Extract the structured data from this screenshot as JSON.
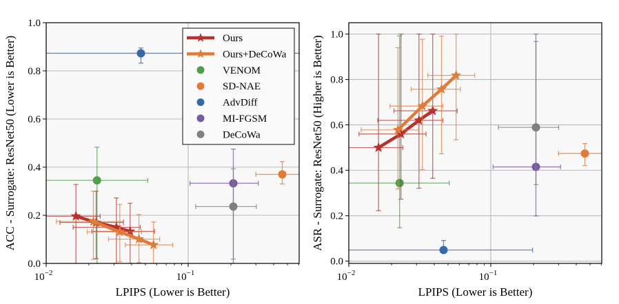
{
  "colors": {
    "ours": "#b5322f",
    "ours_decowa": "#e07b39",
    "venom": "#4f9e4a",
    "sdnae": "#e07b39",
    "advdiff": "#3569a8",
    "mifgsm": "#7a5ba3",
    "decowa": "#808080"
  },
  "legend": {
    "entries": [
      {
        "label": "Ours",
        "key": "ours",
        "marker": "star-line"
      },
      {
        "label": "Ours+DeCoWa",
        "key": "ours_decowa",
        "marker": "star-line"
      },
      {
        "label": "VENOM",
        "key": "venom",
        "marker": "circle"
      },
      {
        "label": "SD-NAE",
        "key": "sdnae",
        "marker": "circle"
      },
      {
        "label": "AdvDiff",
        "key": "advdiff",
        "marker": "circle"
      },
      {
        "label": "MI-FGSM",
        "key": "mifgsm",
        "marker": "circle"
      },
      {
        "label": "DeCoWa",
        "key": "decowa",
        "marker": "circle"
      }
    ],
    "placement": "top-right"
  },
  "chart_data": [
    {
      "type": "scatter",
      "title": "",
      "xlabel": "LPIPS (Lower is Better)",
      "ylabel": "ACC - Surrogate: ResNet50 (Lower is Better)",
      "xscale": "log",
      "xlim": [
        0.01,
        0.605
      ],
      "ylim": [
        0.0,
        1.0
      ],
      "xticks": [
        {
          "value": 0.01,
          "base": "10",
          "exp": "−2"
        },
        {
          "value": 0.1,
          "base": "10",
          "exp": "−1"
        }
      ],
      "yticks": [
        {
          "value": 0.0,
          "label": "0.0"
        },
        {
          "value": 0.2,
          "label": "0.2"
        },
        {
          "value": 0.4,
          "label": "0.4"
        },
        {
          "value": 0.6,
          "label": "0.6"
        },
        {
          "value": 0.8,
          "label": "0.8"
        },
        {
          "value": 1.0,
          "label": "1.0"
        }
      ],
      "grid": true,
      "legend": true,
      "series": [
        {
          "name": "Ours",
          "key": "ours",
          "line": true,
          "marker": "star",
          "points": [
            {
              "x": 0.0162,
              "y": 0.196,
              "xerr": [
                0.0098,
                0.024
              ],
              "yerr": [
                0.0,
                0.328
              ]
            },
            {
              "x": 0.0225,
              "y": 0.17,
              "xerr": [
                0.0125,
                0.035
              ],
              "yerr": [
                0.02,
                0.3
              ]
            },
            {
              "x": 0.0312,
              "y": 0.15,
              "xerr": [
                0.0155,
                0.046
              ],
              "yerr": [
                0.0,
                0.272
              ]
            },
            {
              "x": 0.039,
              "y": 0.133,
              "xerr": [
                0.021,
                0.058
              ],
              "yerr": [
                0.0,
                0.25
              ]
            }
          ]
        },
        {
          "name": "Ours+DeCoWa",
          "key": "ours_decowa",
          "line": true,
          "marker": "star",
          "points": [
            {
              "x": 0.0215,
              "y": 0.174,
              "xerr": [
                0.0118,
                0.035
              ],
              "yerr": [
                0.017,
                0.3
              ]
            },
            {
              "x": 0.033,
              "y": 0.131,
              "xerr": [
                0.0195,
                0.047
              ],
              "yerr": [
                0.007,
                0.245
              ]
            },
            {
              "x": 0.045,
              "y": 0.101,
              "xerr": [
                0.0275,
                0.063
              ],
              "yerr": [
                0.003,
                0.203
              ]
            },
            {
              "x": 0.057,
              "y": 0.077,
              "xerr": [
                0.036,
                0.078
              ],
              "yerr": [
                0.0,
                0.172
              ]
            }
          ]
        },
        {
          "name": "VENOM",
          "key": "venom",
          "line": false,
          "marker": "circle",
          "points": [
            {
              "x": 0.0228,
              "y": 0.345,
              "xerr": [
                0.0098,
                0.052
              ],
              "yerr": [
                0.0,
                0.483
              ]
            }
          ]
        },
        {
          "name": "SD-NAE",
          "key": "sdnae",
          "line": false,
          "marker": "circle",
          "points": [
            {
              "x": 0.46,
              "y": 0.37,
              "xerr": [
                0.3,
                0.605
              ],
              "yerr": [
                0.33,
                0.423
              ]
            }
          ]
        },
        {
          "name": "AdvDiff",
          "key": "advdiff",
          "line": false,
          "marker": "circle",
          "points": [
            {
              "x": 0.0465,
              "y": 0.873,
              "xerr": [
                0.0098,
                0.605
              ],
              "yerr": [
                0.832,
                0.895
              ]
            }
          ]
        },
        {
          "name": "MI-FGSM",
          "key": "mifgsm",
          "line": false,
          "marker": "circle",
          "points": [
            {
              "x": 0.208,
              "y": 0.333,
              "xerr": [
                0.103,
                0.312
              ],
              "yerr": [
                0.0,
                0.475
              ]
            }
          ]
        },
        {
          "name": "DeCoWa",
          "key": "decowa",
          "line": false,
          "marker": "circle",
          "points": [
            {
              "x": 0.208,
              "y": 0.236,
              "xerr": [
                0.113,
                0.302
              ],
              "yerr": [
                0.018,
                0.393
              ]
            }
          ]
        }
      ]
    },
    {
      "type": "scatter",
      "title": "",
      "xlabel": "LPIPS (Lower is Better)",
      "ylabel": "ASR - Surrogate: ResNet50 (Higher is Better)",
      "xscale": "log",
      "xlim": [
        0.01,
        0.605
      ],
      "ylim": [
        -0.01,
        1.05
      ],
      "xticks": [
        {
          "value": 0.01,
          "base": "10",
          "exp": "−2"
        },
        {
          "value": 0.1,
          "base": "10",
          "exp": "−1"
        }
      ],
      "yticks": [
        {
          "value": 0.0,
          "label": "0.0"
        },
        {
          "value": 0.2,
          "label": "0.2"
        },
        {
          "value": 0.4,
          "label": "0.4"
        },
        {
          "value": 0.6,
          "label": "0.6"
        },
        {
          "value": 0.8,
          "label": "0.8"
        },
        {
          "value": 1.0,
          "label": "1.0"
        }
      ],
      "grid": true,
      "legend": false,
      "series": [
        {
          "name": "Ours",
          "key": "ours",
          "line": true,
          "marker": "star",
          "points": [
            {
              "x": 0.0162,
              "y": 0.5,
              "xerr": [
                0.0098,
                0.024
              ],
              "yerr": [
                0.222,
                1.0
              ]
            },
            {
              "x": 0.0233,
              "y": 0.56,
              "xerr": [
                0.0118,
                0.035
              ],
              "yerr": [
                0.273,
                1.0
              ]
            },
            {
              "x": 0.0312,
              "y": 0.62,
              "xerr": [
                0.016,
                0.046
              ],
              "yerr": [
                0.321,
                1.0
              ]
            },
            {
              "x": 0.039,
              "y": 0.662,
              "xerr": [
                0.0208,
                0.058
              ],
              "yerr": [
                0.365,
                1.0
              ]
            }
          ]
        },
        {
          "name": "Ours+DeCoWa",
          "key": "ours_decowa",
          "line": true,
          "marker": "star",
          "points": [
            {
              "x": 0.0222,
              "y": 0.578,
              "xerr": [
                0.0122,
                0.031
              ],
              "yerr": [
                0.318,
                0.94
              ]
            },
            {
              "x": 0.033,
              "y": 0.683,
              "xerr": [
                0.0195,
                0.046
              ],
              "yerr": [
                0.403,
                0.977
              ]
            },
            {
              "x": 0.045,
              "y": 0.757,
              "xerr": [
                0.0275,
                0.061
              ],
              "yerr": [
                0.473,
                0.991
              ]
            },
            {
              "x": 0.057,
              "y": 0.818,
              "xerr": [
                0.036,
                0.077
              ],
              "yerr": [
                0.534,
                1.0
              ]
            }
          ]
        },
        {
          "name": "VENOM",
          "key": "venom",
          "line": false,
          "marker": "circle",
          "points": [
            {
              "x": 0.0228,
              "y": 0.344,
              "xerr": [
                0.0098,
                0.051
              ],
              "yerr": [
                0.147,
                0.992
              ]
            }
          ]
        },
        {
          "name": "SD-NAE",
          "key": "sdnae",
          "line": false,
          "marker": "circle",
          "points": [
            {
              "x": 0.46,
              "y": 0.474,
              "xerr": [
                0.3,
                0.605
              ],
              "yerr": [
                0.421,
                0.518
              ]
            }
          ]
        },
        {
          "name": "AdvDiff",
          "key": "advdiff",
          "line": false,
          "marker": "circle",
          "points": [
            {
              "x": 0.0465,
              "y": 0.049,
              "xerr": [
                0.0098,
                0.197
              ],
              "yerr": [
                0.049,
                0.091
              ]
            }
          ]
        },
        {
          "name": "MI-FGSM",
          "key": "mifgsm",
          "line": false,
          "marker": "circle",
          "points": [
            {
              "x": 0.208,
              "y": 0.415,
              "xerr": [
                0.104,
                0.31
              ],
              "yerr": [
                0.199,
                1.0
              ]
            }
          ]
        },
        {
          "name": "DeCoWa",
          "key": "decowa",
          "line": false,
          "marker": "circle",
          "points": [
            {
              "x": 0.208,
              "y": 0.589,
              "xerr": [
                0.113,
                0.301
              ],
              "yerr": [
                0.337,
                0.967
              ]
            }
          ]
        }
      ]
    }
  ]
}
